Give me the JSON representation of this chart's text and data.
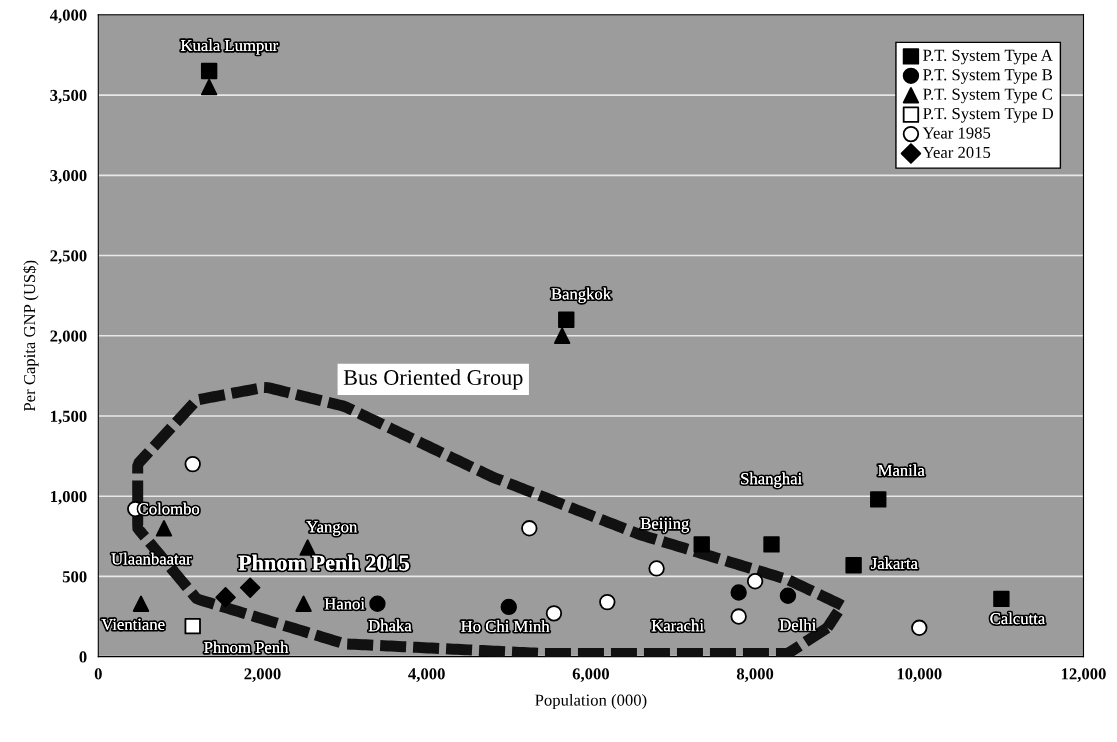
{
  "chart_data": {
    "type": "scatter",
    "xlabel": "Population (000)",
    "ylabel": "Per Capita GNP (US$)",
    "xlim": [
      0,
      12000
    ],
    "ylim": [
      0,
      4000
    ],
    "xticks": [
      0,
      {
        "value": 2000,
        "label": "2,000"
      },
      {
        "value": 4000,
        "label": "4,000"
      },
      {
        "value": 6000,
        "label": "6,000"
      },
      {
        "value": 8000,
        "label": "8,000"
      },
      {
        "value": 10000,
        "label": "10,000"
      },
      {
        "value": 12000,
        "label": "12,000"
      }
    ],
    "yticks": [
      0,
      500,
      {
        "value": 1000,
        "label": "1,000"
      },
      {
        "value": 1500,
        "label": "1,500"
      },
      {
        "value": 2000,
        "label": "2,000"
      },
      {
        "value": 2500,
        "label": "2,500"
      },
      {
        "value": 3000,
        "label": "3,000"
      },
      {
        "value": 3500,
        "label": "3,500"
      },
      {
        "value": 4000,
        "label": "4,000"
      }
    ],
    "grid": "y",
    "legend": "top right",
    "series": [
      {
        "name": "P.T. System Type A",
        "color": "#000000",
        "marker": "square",
        "x": [
          1350,
          5700,
          7350,
          8200,
          9500,
          9200,
          11000
        ],
        "values": [
          3650,
          2100,
          700,
          700,
          980,
          570,
          360
        ]
      },
      {
        "name": "P.T. System Type B",
        "color": "#000000",
        "marker": "circle",
        "x": [
          3400,
          5000,
          7800,
          8400
        ],
        "values": [
          330,
          310,
          400,
          380
        ]
      },
      {
        "name": "P.T. System Type C",
        "color": "#000000",
        "marker": "triangle",
        "x": [
          1350,
          5650,
          800,
          2550,
          520,
          2500
        ],
        "values": [
          3550,
          2000,
          800,
          680,
          330,
          330
        ]
      },
      {
        "name": "P.T. System Type D",
        "color": "#ffffff",
        "marker": "square",
        "x": [
          1150
        ],
        "values": [
          190
        ]
      },
      {
        "name": "Year 1985",
        "color": "#ffffff",
        "marker": "circle",
        "x": [
          1150,
          450,
          5250,
          6800,
          5550,
          6200,
          8000,
          7800,
          10000
        ],
        "values": [
          1200,
          920,
          800,
          550,
          270,
          340,
          470,
          250,
          180
        ]
      },
      {
        "name": "Year 2015",
        "color": "#000000",
        "marker": "diamond",
        "x": [
          1550,
          1850
        ],
        "values": [
          370,
          430
        ]
      }
    ],
    "annotations": [
      "Kuala Lumpur",
      "Bangkok",
      "Bus Oriented Group",
      "Manila",
      "Shanghai",
      "Beijing",
      "Colombo",
      "Yangon",
      "Ulaanbaatar",
      "Phnom Penh 2015",
      "Hanoi",
      "Dhaka",
      "Ho Chi Minh",
      "Karachi",
      "Delhi",
      "Jakarta",
      "Calcutta",
      "Vientiane",
      "Phnom Penh"
    ]
  }
}
